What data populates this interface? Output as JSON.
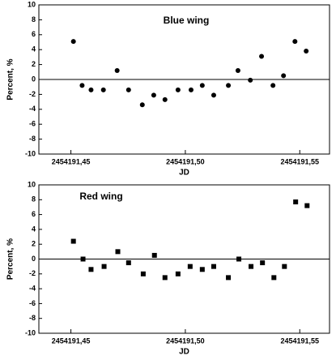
{
  "chart_data": [
    {
      "type": "scatter",
      "title": "Blue wing",
      "xlabel": "JD",
      "ylabel": "Percent, %",
      "marker": "circle",
      "color": "#000000",
      "x": [
        2454191.4511,
        2454191.4549,
        2454191.4588,
        2454191.4642,
        2454191.4702,
        2454191.4752,
        2454191.4812,
        2454191.4862,
        2454191.4911,
        2454191.4968,
        2454191.5025,
        2454191.5074,
        2454191.5124,
        2454191.5188,
        2454191.523,
        2454191.5284,
        2454191.5333,
        2454191.5383,
        2454191.5429,
        2454191.5479,
        2454191.5528
      ],
      "values": [
        5.1,
        -0.8,
        -1.4,
        -1.4,
        1.2,
        -1.4,
        -3.4,
        -2.1,
        -2.7,
        -1.4,
        -1.4,
        -0.8,
        -2.1,
        -0.8,
        1.2,
        -0.1,
        3.1,
        -0.8,
        0.5,
        5.1,
        3.8
      ],
      "reference_line": 0,
      "xlim": [
        2454191.436,
        2454191.563
      ],
      "ylim": [
        -10,
        10
      ],
      "xticks": [
        {
          "value": 2454191.45,
          "label": "2454191,45"
        },
        {
          "value": 2454191.5,
          "label": "2454191,50"
        },
        {
          "value": 2454191.55,
          "label": "2454191,55"
        }
      ],
      "yticks": [
        -10,
        -8,
        -6,
        -4,
        -2,
        0,
        2,
        4,
        6,
        8,
        10
      ]
    },
    {
      "type": "scatter",
      "title": "Red wing",
      "xlabel": "JD",
      "ylabel": "Percent, %",
      "marker": "square",
      "color": "#000000",
      "x": [
        2454191.4511,
        2454191.4553,
        2454191.4588,
        2454191.4645,
        2454191.4705,
        2454191.4752,
        2454191.4816,
        2454191.4865,
        2454191.4911,
        2454191.4968,
        2454191.5021,
        2454191.5074,
        2454191.5124,
        2454191.5188,
        2454191.5234,
        2454191.5287,
        2454191.5337,
        2454191.5387,
        2454191.5433,
        2454191.5482,
        2454191.5532
      ],
      "values": [
        2.4,
        0,
        -1.4,
        -1,
        1,
        -0.5,
        -2,
        0.5,
        -2.5,
        -2,
        -1,
        -1.4,
        -1,
        -2.5,
        0,
        -1,
        -0.5,
        -2.5,
        -1,
        7.7,
        7.2
      ],
      "reference_line": 0,
      "xlim": [
        2454191.436,
        2454191.563
      ],
      "ylim": [
        -10,
        10
      ],
      "xticks": [
        {
          "value": 2454191.45,
          "label": "2454191,45"
        },
        {
          "value": 2454191.5,
          "label": "2454191,50"
        },
        {
          "value": 2454191.55,
          "label": "2454191,55"
        }
      ],
      "yticks": [
        -10,
        -8,
        -6,
        -4,
        -2,
        0,
        2,
        4,
        6,
        8,
        10
      ]
    }
  ]
}
